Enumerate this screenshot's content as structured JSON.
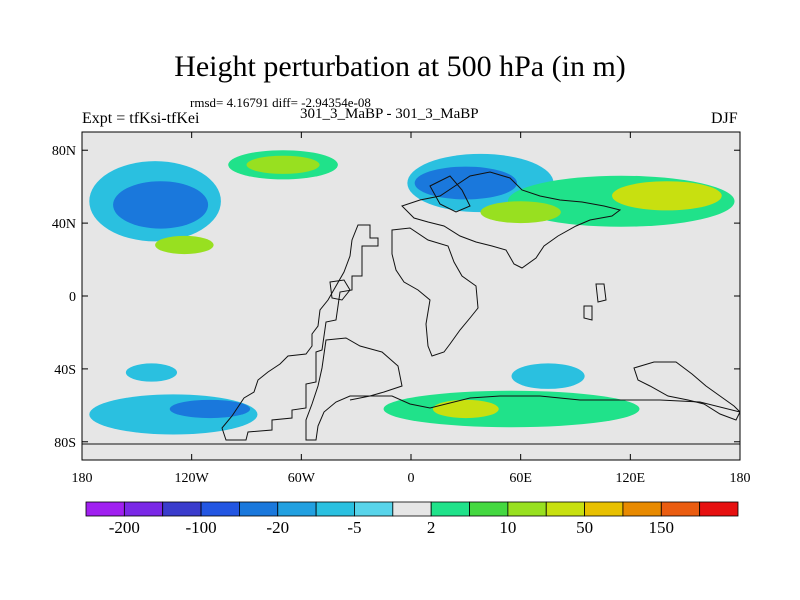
{
  "title": "Height perturbation at 500 hPa (in m)",
  "stats": "rmsd= 4.16791 diff= -2.94354e-08",
  "case": "301_3_MaBP - 301_3_MaBP",
  "expt": "Expt = tfKsi-tfKei",
  "season": "DJF",
  "chart_data": {
    "type": "heatmap",
    "title": "Height perturbation at 500 hPa (in m)",
    "subtitle": "301_3_MaBP - 301_3_MaBP",
    "xlim": [
      -180,
      180
    ],
    "ylim": [
      -90,
      90
    ],
    "x_ticks": [
      {
        "value": -180,
        "label": "180"
      },
      {
        "value": -120,
        "label": "120W"
      },
      {
        "value": -60,
        "label": "60W"
      },
      {
        "value": 0,
        "label": "0"
      },
      {
        "value": 60,
        "label": "60E"
      },
      {
        "value": 120,
        "label": "120E"
      },
      {
        "value": 180,
        "label": "180"
      }
    ],
    "y_ticks": [
      {
        "value": 80,
        "label": "80N"
      },
      {
        "value": 40,
        "label": "40N"
      },
      {
        "value": 0,
        "label": "0"
      },
      {
        "value": -40,
        "label": "40S"
      },
      {
        "value": -80,
        "label": "80S"
      }
    ],
    "colorbar": {
      "levels": [
        -200,
        -150,
        -100,
        -50,
        -20,
        -10,
        -5,
        -2,
        2,
        5,
        10,
        20,
        50,
        100,
        150,
        200
      ],
      "colors": [
        "#a020f0",
        "#7a28e6",
        "#3a3ccc",
        "#2356e2",
        "#1a78dc",
        "#22a0e0",
        "#2ac0e0",
        "#58d4ea",
        "#e6e6e6",
        "#20e28a",
        "#44d840",
        "#98e020",
        "#c8e010",
        "#e8c000",
        "#e88a00",
        "#ea5c10",
        "#e61010"
      ],
      "labels": [
        "-200",
        "-100",
        "-20",
        "-5",
        "2",
        "10",
        "50",
        "150"
      ],
      "label_positions": [
        0,
        2,
        4,
        6,
        8,
        10,
        12,
        14
      ]
    },
    "features": [
      {
        "kind": "negative",
        "level": -5,
        "cx": -140,
        "cy": 52,
        "rx": 36,
        "ry": 22
      },
      {
        "kind": "negative",
        "level": -20,
        "cx": -137,
        "cy": 50,
        "rx": 26,
        "ry": 13
      },
      {
        "kind": "negative",
        "level": -5,
        "cx": 38,
        "cy": 62,
        "rx": 40,
        "ry": 16
      },
      {
        "kind": "negative",
        "level": -20,
        "cx": 30,
        "cy": 62,
        "rx": 28,
        "ry": 9
      },
      {
        "kind": "positive",
        "level": 2,
        "cx": -70,
        "cy": 72,
        "rx": 30,
        "ry": 8
      },
      {
        "kind": "positive",
        "level": 10,
        "cx": -70,
        "cy": 72,
        "rx": 20,
        "ry": 5
      },
      {
        "kind": "positive",
        "level": 2,
        "cx": 115,
        "cy": 52,
        "rx": 62,
        "ry": 14
      },
      {
        "kind": "positive",
        "level": 20,
        "cx": 140,
        "cy": 55,
        "rx": 30,
        "ry": 8
      },
      {
        "kind": "positive",
        "level": 10,
        "cx": 60,
        "cy": 46,
        "rx": 22,
        "ry": 6
      },
      {
        "kind": "positive",
        "level": 10,
        "cx": -124,
        "cy": 28,
        "rx": 16,
        "ry": 5
      },
      {
        "kind": "negative",
        "level": -5,
        "cx": -130,
        "cy": -65,
        "rx": 46,
        "ry": 11
      },
      {
        "kind": "negative",
        "level": -20,
        "cx": -110,
        "cy": -62,
        "rx": 22,
        "ry": 5
      },
      {
        "kind": "positive",
        "level": 2,
        "cx": 55,
        "cy": -62,
        "rx": 70,
        "ry": 10
      },
      {
        "kind": "positive",
        "level": 20,
        "cx": 30,
        "cy": -62,
        "rx": 18,
        "ry": 5
      },
      {
        "kind": "negative",
        "level": -5,
        "cx": 75,
        "cy": -44,
        "rx": 20,
        "ry": 7
      },
      {
        "kind": "negative",
        "level": -5,
        "cx": -142,
        "cy": -42,
        "rx": 14,
        "ry": 5
      }
    ]
  }
}
